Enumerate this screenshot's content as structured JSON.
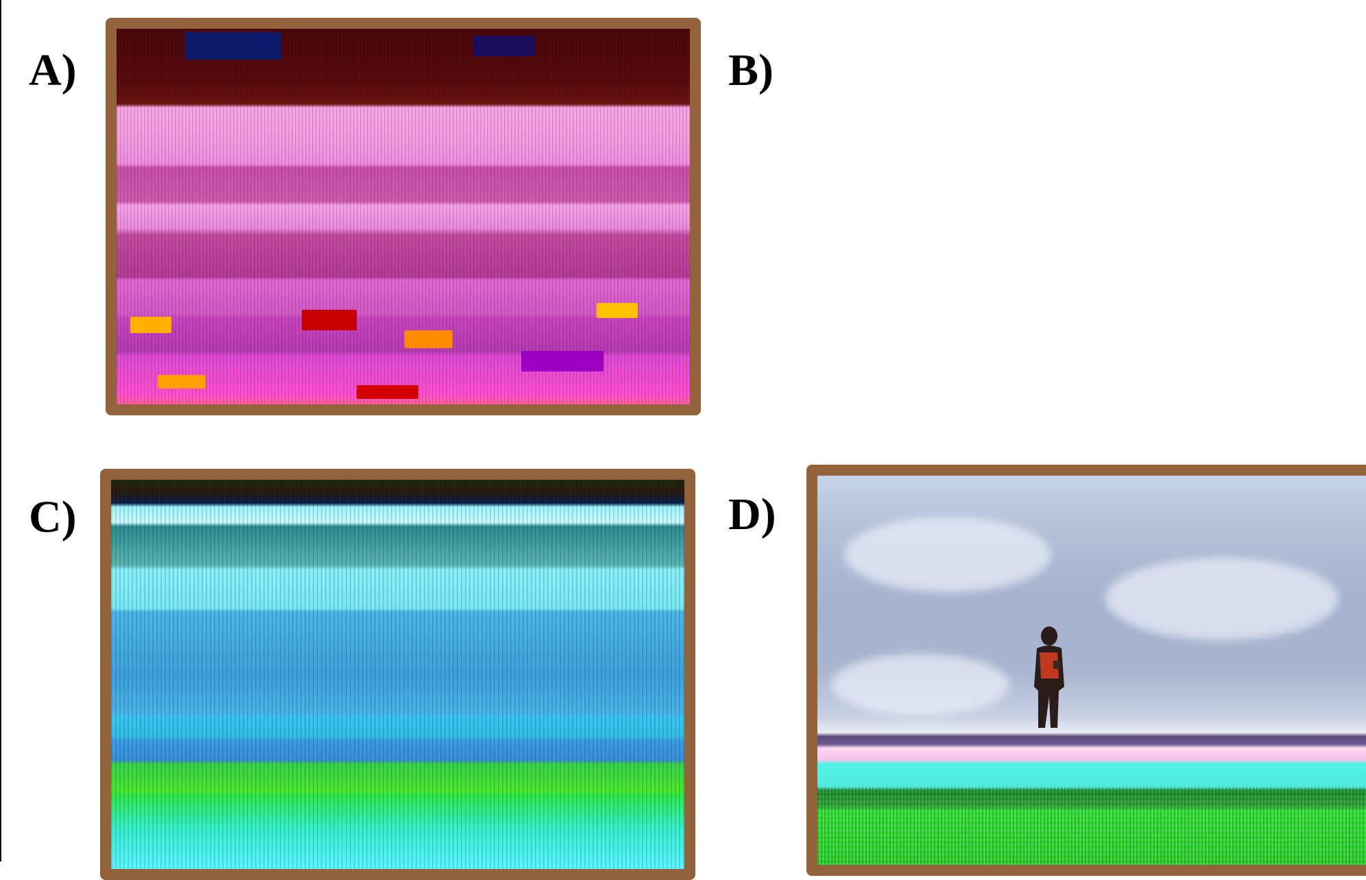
{
  "panels": [
    {
      "id": "A",
      "label": "A)",
      "has_photo": true
    },
    {
      "id": "B",
      "label": "B)",
      "has_photo": false
    },
    {
      "id": "C",
      "label": "C)",
      "has_photo": true
    },
    {
      "id": "D",
      "label": "D)",
      "has_photo": true
    }
  ],
  "colors": {
    "frame": "#93623a",
    "label_text": "#000000",
    "background": "#ffffff"
  }
}
